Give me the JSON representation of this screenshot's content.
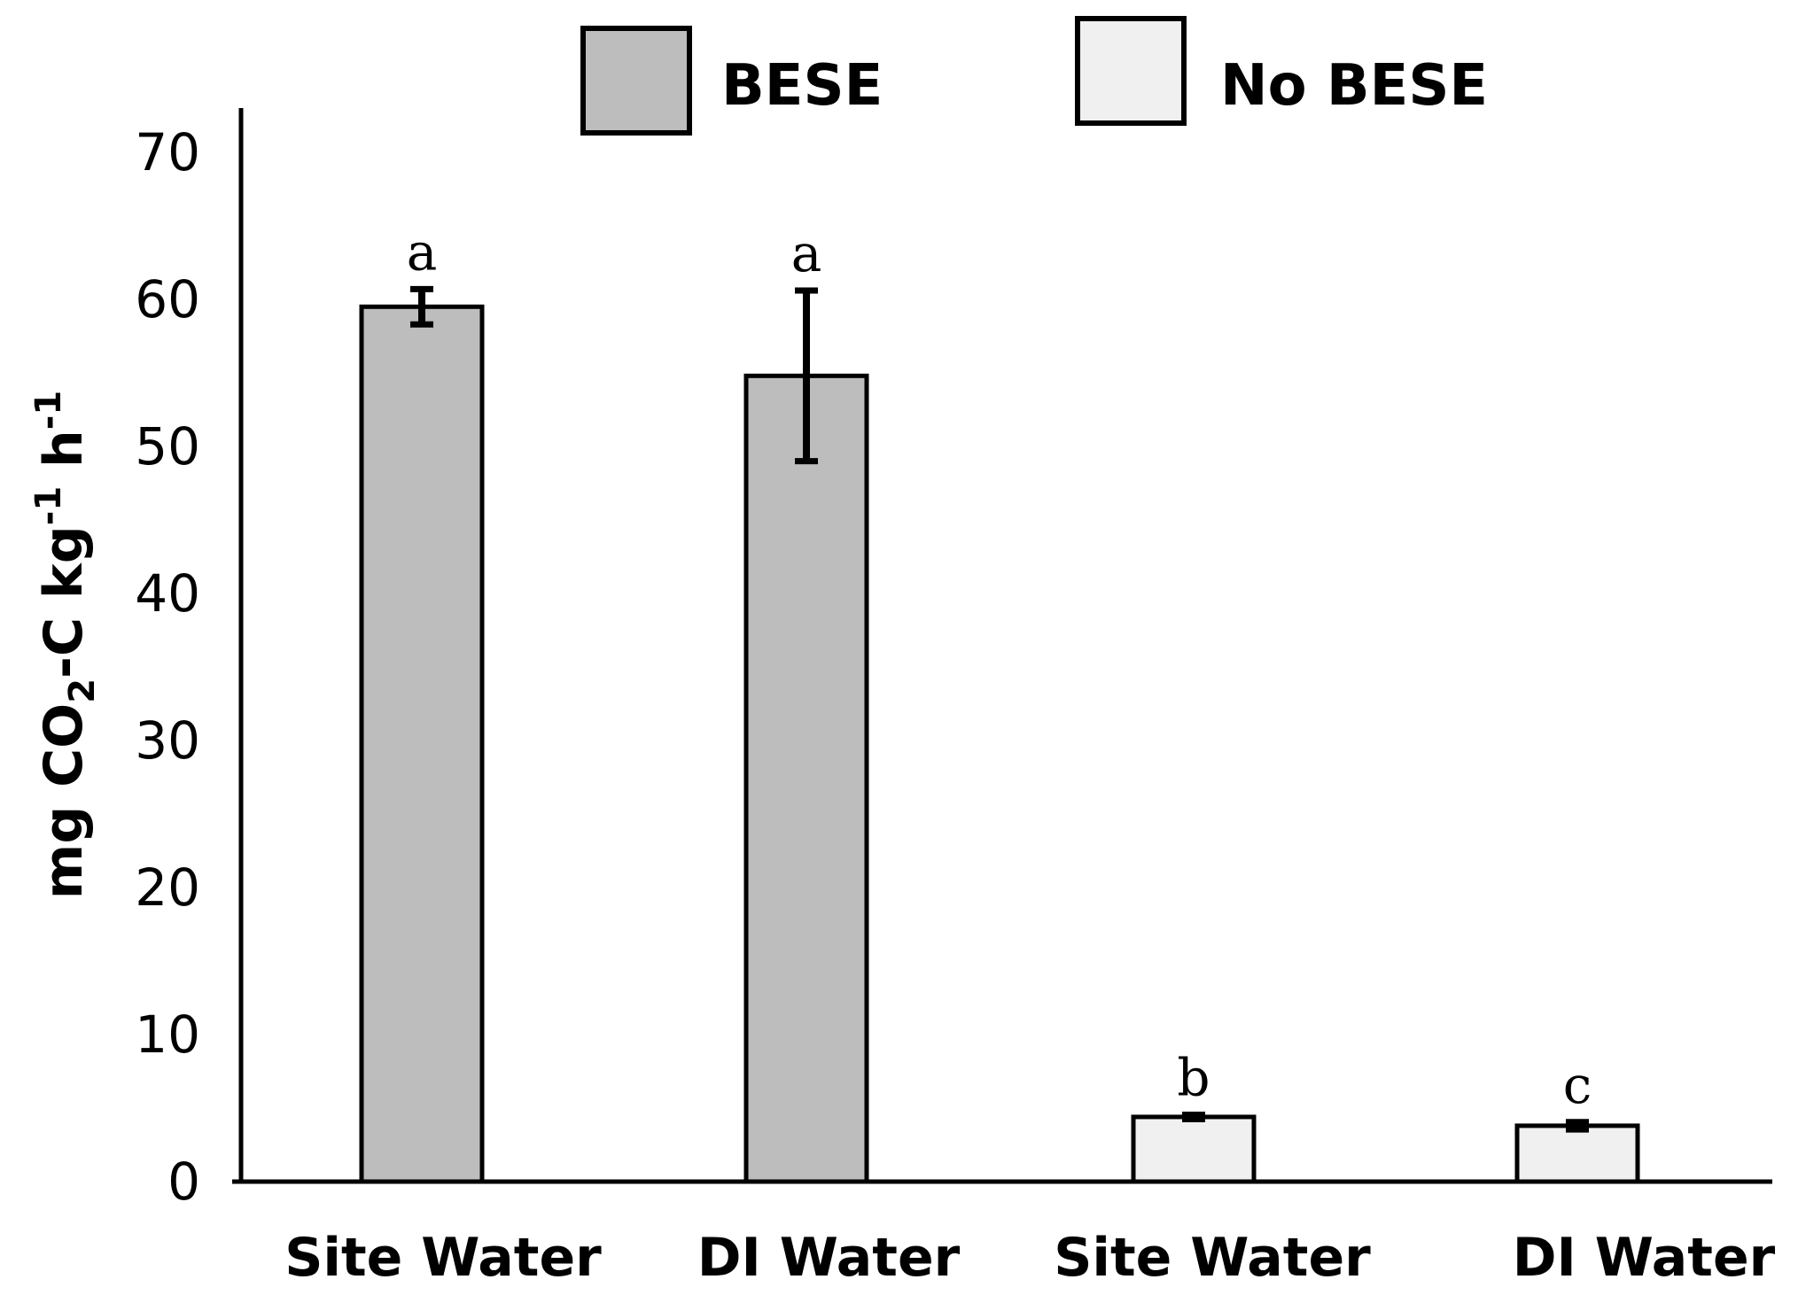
{
  "chart_data": {
    "type": "bar",
    "ylabel": {
      "main1": "mg CO",
      "sub1": "2",
      "main2": "-C kg",
      "sup1": "-1",
      "main3": " h",
      "sup2": "-1"
    },
    "ylim": [
      0,
      70
    ],
    "yticks": [
      "0",
      "10",
      "20",
      "30",
      "40",
      "50",
      "60",
      "70"
    ],
    "grid": false,
    "legend_position": "top",
    "legend": [
      {
        "name": "BESE",
        "color": "#bdbdbd"
      },
      {
        "name": "No BESE",
        "color": "#f0f0f0"
      }
    ],
    "bars": [
      {
        "category": "Site Water",
        "series": "BESE",
        "value": 59.5,
        "error": 1.2,
        "significance": "a"
      },
      {
        "category": "DI Water",
        "series": "BESE",
        "value": 54.8,
        "error": 5.8,
        "significance": "a"
      },
      {
        "category": "Site Water",
        "series": "No BESE",
        "value": 4.4,
        "error": 0.15,
        "significance": "b"
      },
      {
        "category": "DI Water",
        "series": "No BESE",
        "value": 3.8,
        "error": 0.25,
        "significance": "c"
      }
    ]
  }
}
